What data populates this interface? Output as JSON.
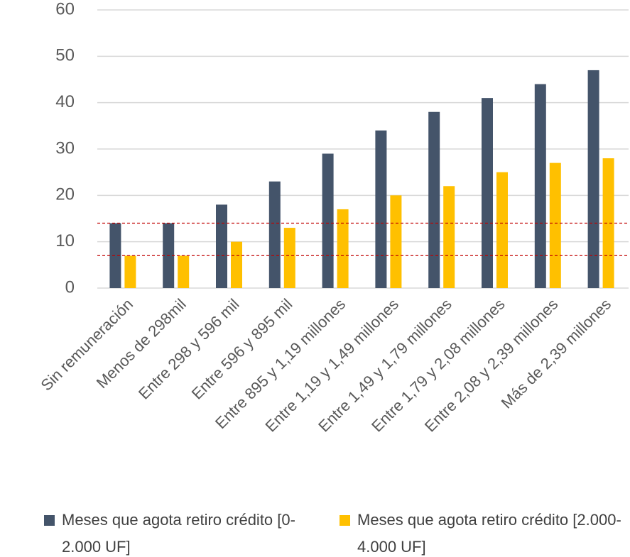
{
  "chart_data": {
    "type": "bar",
    "categories": [
      "Sin remuneración",
      "Menos de 298mil",
      "Entre 298 y 596 mil",
      "Entre 596 y 895 mil",
      "Entre 895 y 1,19 millones",
      "Entre 1,19 y 1,49 millones",
      "Entre 1,49 y 1,79 millones",
      "Entre 1,79 y 2,08 millones",
      "Entre 2,08 y 2,39 millones",
      "Más de 2,39 millones"
    ],
    "series": [
      {
        "name": "Meses que agota retiro crédito [0-2.000 UF]",
        "color": "#44546a",
        "values": [
          14,
          14,
          18,
          23,
          29,
          34,
          38,
          41,
          44,
          47
        ]
      },
      {
        "name": "Meses que agota retiro crédito [2.000-4.000 UF]",
        "color": "#ffc000",
        "values": [
          7,
          7,
          10,
          13,
          17,
          20,
          22,
          25,
          27,
          28
        ]
      }
    ],
    "reference_lines": [
      14,
      7
    ],
    "reference_color": "#c00000",
    "ylim": [
      0,
      60
    ],
    "yticks": [
      0,
      10,
      20,
      30,
      40,
      50,
      60
    ],
    "grid": true,
    "legend": "bottom"
  }
}
